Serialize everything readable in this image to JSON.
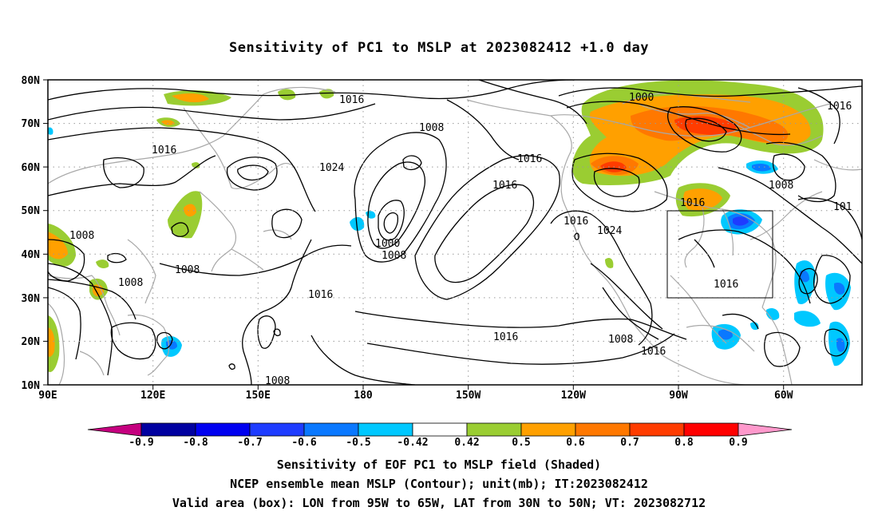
{
  "title": "Sensitivity of PC1 to MSLP at 2023082412 +1.0 day",
  "axes": {
    "lat_labels": [
      "80N",
      "70N",
      "60N",
      "50N",
      "40N",
      "30N",
      "20N",
      "10N"
    ],
    "lon_labels": [
      "90E",
      "120E",
      "150E",
      "180",
      "150W",
      "120W",
      "90W",
      "60W"
    ]
  },
  "contour_labels": [
    "1016",
    "1000",
    "1016",
    "1008",
    "1016",
    "1016",
    "1024",
    "1016",
    "1008",
    "1016",
    "101",
    "1008",
    "1008",
    "1016",
    "1000",
    "1008",
    "1016",
    "1024",
    "1016",
    "1016",
    "1008",
    "1016",
    "1008"
  ],
  "colorbar": {
    "labels": [
      "-0.9",
      "-0.8",
      "-0.7",
      "-0.6",
      "-0.5",
      "-0.42",
      "0.42",
      "0.5",
      "0.6",
      "0.7",
      "0.8",
      "0.9"
    ],
    "colors": [
      "#c5007f",
      "#0000a0",
      "#0000f0",
      "#1e3cff",
      "#0a78ff",
      "#00c8ff",
      "#ffffff",
      "#9acd32",
      "#ffa000",
      "#ff7800",
      "#ff3c00",
      "#ff0000",
      "#ff99cc"
    ]
  },
  "footer": {
    "line1": "Sensitivity of EOF PC1 to MSLP field (Shaded)",
    "line2": "NCEP ensemble mean MSLP (Contour); unit(mb); IT:2023082412",
    "line3": "Valid area (box): LON from 95W to 65W, LAT from 30N to 50N; VT: 2023082712"
  },
  "colors": {
    "coastline": "#a8a8a8",
    "contour": "#000000",
    "grid": "#9a9a9a"
  }
}
